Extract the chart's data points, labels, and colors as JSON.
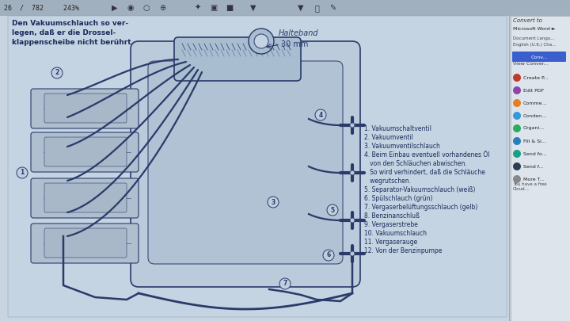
{
  "bg_color": "#8a9bb0",
  "screen_bg": "#c8d4e0",
  "toolbar_bg": "#a0b0be",
  "drawing_bg": "#c4d4e2",
  "line_color": "#2a3a6a",
  "text_color": "#1a2a5a",
  "toolbar_text": "26  /  782     243%",
  "annotation_top": "Den Vakuumschlauch so ver-\nlegen, daß er die Drossel-\nklappenscheibe nicht berührt.",
  "halteband_label": "Halteband",
  "mm_label": "30 mm",
  "numbered_items": [
    "1. Vakuumschaltventil",
    "2. Vakuumventil",
    "3. Vakuumventilschlauch",
    "4. Beim Einbau eventuell vorhandenes Öl",
    "   von den Schläuchen abwischen.",
    "   So wird verhindert, daß die Schläuche",
    "   wegrutschen.",
    "5. Separator-Vakuumschlauch (weiß)",
    "6. Spülschlauch (grün)",
    "7. Vergaserbelüftungsschlauch (gelb)",
    "8. Benzinanschluß",
    "9. Vergaserstrebe",
    "10. Vakuumschlauch",
    "11. Vergaserauge",
    "12. Von der Benzinpumpe"
  ],
  "right_panel_icons": [
    {
      "color": "#c0392b",
      "label": "Create P..."
    },
    {
      "color": "#8e44ad",
      "label": "Edit PDF"
    },
    {
      "color": "#e67e22",
      "label": "Comme..."
    },
    {
      "color": "#3498db",
      "label": "Conden..."
    },
    {
      "color": "#27ae60",
      "label": "Organi..."
    },
    {
      "color": "#2980b9",
      "label": "Fill & Si..."
    },
    {
      "color": "#16a085",
      "label": "Send fo..."
    },
    {
      "color": "#2c3e50",
      "label": "Send f..."
    },
    {
      "color": "#888888",
      "label": "More T..."
    }
  ],
  "figsize": [
    7.2,
    4.05
  ],
  "dpi": 100
}
